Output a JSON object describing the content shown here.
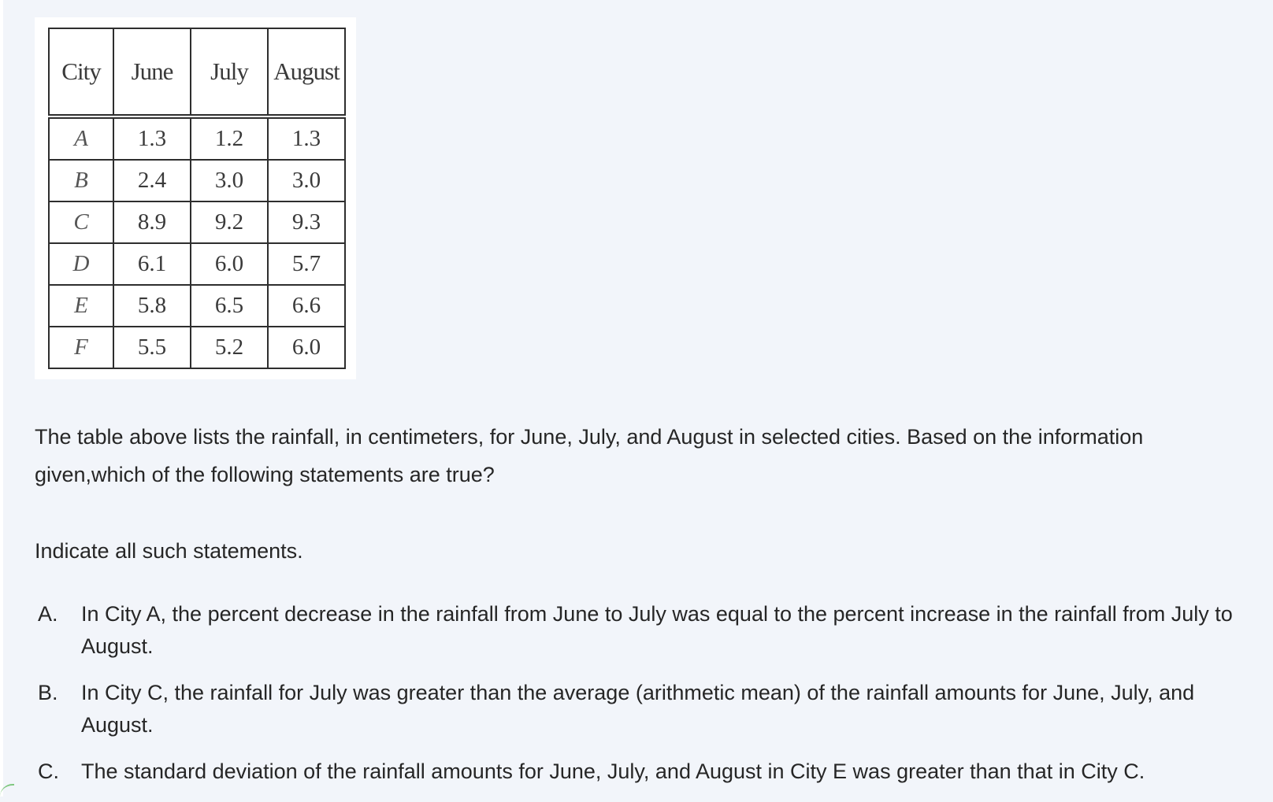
{
  "table": {
    "headers": [
      "City",
      "June",
      "July",
      "August"
    ],
    "rows": [
      {
        "city": "A",
        "june": "1.3",
        "july": "1.2",
        "august": "1.3"
      },
      {
        "city": "B",
        "june": "2.4",
        "july": "3.0",
        "august": "3.0"
      },
      {
        "city": "C",
        "june": "8.9",
        "july": "9.2",
        "august": "9.3"
      },
      {
        "city": "D",
        "june": "6.1",
        "july": "6.0",
        "august": "5.7"
      },
      {
        "city": "E",
        "june": "5.8",
        "july": "6.5",
        "august": "6.6"
      },
      {
        "city": "F",
        "june": "5.5",
        "july": "5.2",
        "august": "6.0"
      }
    ]
  },
  "question": "The table above lists the rainfall, in centimeters, for June, July, and August in selected cities. Based on the information given,which of the following statements are true?",
  "instruction": "Indicate all such statements.",
  "options": [
    {
      "letter": "A.",
      "text": "In City A, the percent decrease in the rainfall from June to July was equal to the percent increase in the rainfall from July to August."
    },
    {
      "letter": "B.",
      "text": "In City C, the rainfall for July was greater than the average (arithmetic mean) of the rainfall amounts for June, July, and August."
    },
    {
      "letter": "C.",
      "text": "The standard deviation of the rainfall amounts for June, July, and August in City E was greater than that in City C."
    }
  ]
}
